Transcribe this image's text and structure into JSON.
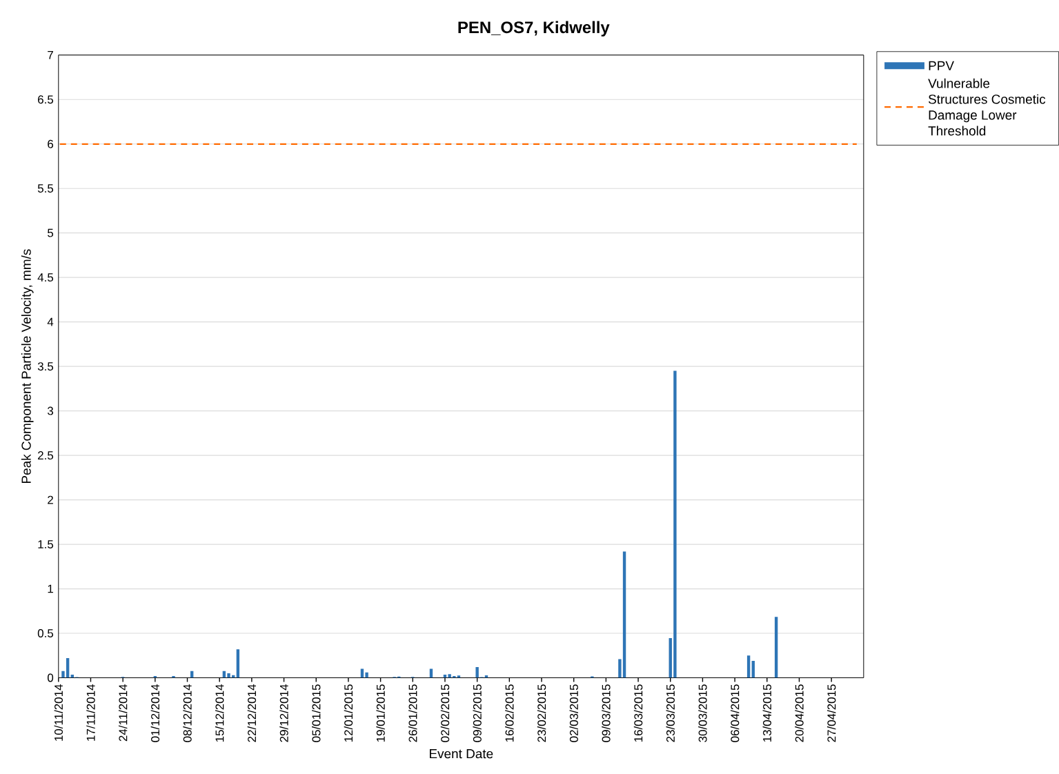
{
  "chart_data": {
    "type": "bar",
    "title": "PEN_OS7, Kidwelly",
    "xlabel": "Event Date",
    "ylabel": "Peak Component Particle Velocity, mm/s",
    "series": [
      {
        "name": "PPV",
        "color": "#2e75b6",
        "x": [
          "2014-11-11",
          "2014-11-12",
          "2014-11-13",
          "2014-11-14",
          "2014-11-24",
          "2014-12-01",
          "2014-12-05",
          "2014-12-09",
          "2014-12-16",
          "2014-12-17",
          "2014-12-18",
          "2014-12-19",
          "2015-01-15",
          "2015-01-16",
          "2015-01-22",
          "2015-01-23",
          "2015-01-26",
          "2015-01-30",
          "2015-02-02",
          "2015-02-03",
          "2015-02-04",
          "2015-02-05",
          "2015-02-09",
          "2015-02-10",
          "2015-02-11",
          "2015-03-06",
          "2015-03-12",
          "2015-03-13",
          "2015-03-23",
          "2015-03-24",
          "2015-04-09",
          "2015-04-10",
          "2015-04-15"
        ],
        "values": [
          0.075,
          0.22,
          0.034,
          0.008,
          0.01,
          0.02,
          0.02,
          0.075,
          0.075,
          0.05,
          0.03,
          0.32,
          0.1,
          0.06,
          0.01,
          0.013,
          0.01,
          0.1,
          0.034,
          0.04,
          0.02,
          0.026,
          0.12,
          0.008,
          0.028,
          0.015,
          0.21,
          1.42,
          0.446,
          3.45,
          0.25,
          0.19,
          0.685
        ]
      }
    ],
    "ref_lines": [
      {
        "axis": "y",
        "value": 6,
        "label": "Vulnerable Structures Cosmetic Damage Lower Threshold",
        "color": "#ff6a00",
        "line_style": "dashed"
      }
    ],
    "xlim": [
      "2014-11-10",
      "2015-05-04"
    ],
    "xticks": [
      {
        "value": "2014-11-10",
        "label": "10/11/2014"
      },
      {
        "value": "2014-11-17",
        "label": "17/11/2014"
      },
      {
        "value": "2014-11-24",
        "label": "24/11/2014"
      },
      {
        "value": "2014-12-01",
        "label": "01/12/2014"
      },
      {
        "value": "2014-12-08",
        "label": "08/12/2014"
      },
      {
        "value": "2014-12-15",
        "label": "15/12/2014"
      },
      {
        "value": "2014-12-22",
        "label": "22/12/2014"
      },
      {
        "value": "2014-12-29",
        "label": "29/12/2014"
      },
      {
        "value": "2015-01-05",
        "label": "05/01/2015"
      },
      {
        "value": "2015-01-12",
        "label": "12/01/2015"
      },
      {
        "value": "2015-01-19",
        "label": "19/01/2015"
      },
      {
        "value": "2015-01-26",
        "label": "26/01/2015"
      },
      {
        "value": "2015-02-02",
        "label": "02/02/2015"
      },
      {
        "value": "2015-02-09",
        "label": "09/02/2015"
      },
      {
        "value": "2015-02-16",
        "label": "16/02/2015"
      },
      {
        "value": "2015-02-23",
        "label": "23/02/2015"
      },
      {
        "value": "2015-03-02",
        "label": "02/03/2015"
      },
      {
        "value": "2015-03-09",
        "label": "09/03/2015"
      },
      {
        "value": "2015-03-16",
        "label": "16/03/2015"
      },
      {
        "value": "2015-03-23",
        "label": "23/03/2015"
      },
      {
        "value": "2015-03-30",
        "label": "30/03/2015"
      },
      {
        "value": "2015-04-06",
        "label": "06/04/2015"
      },
      {
        "value": "2015-04-13",
        "label": "13/04/2015"
      },
      {
        "value": "2015-04-20",
        "label": "20/04/2015"
      },
      {
        "value": "2015-04-27",
        "label": "27/04/2015"
      }
    ],
    "ylim": [
      0,
      7
    ],
    "yticks": [
      0,
      0.5,
      1,
      1.5,
      2,
      2.5,
      3,
      3.5,
      4,
      4.5,
      5,
      5.5,
      6,
      6.5,
      7
    ],
    "grid": "y",
    "legend": "right"
  }
}
